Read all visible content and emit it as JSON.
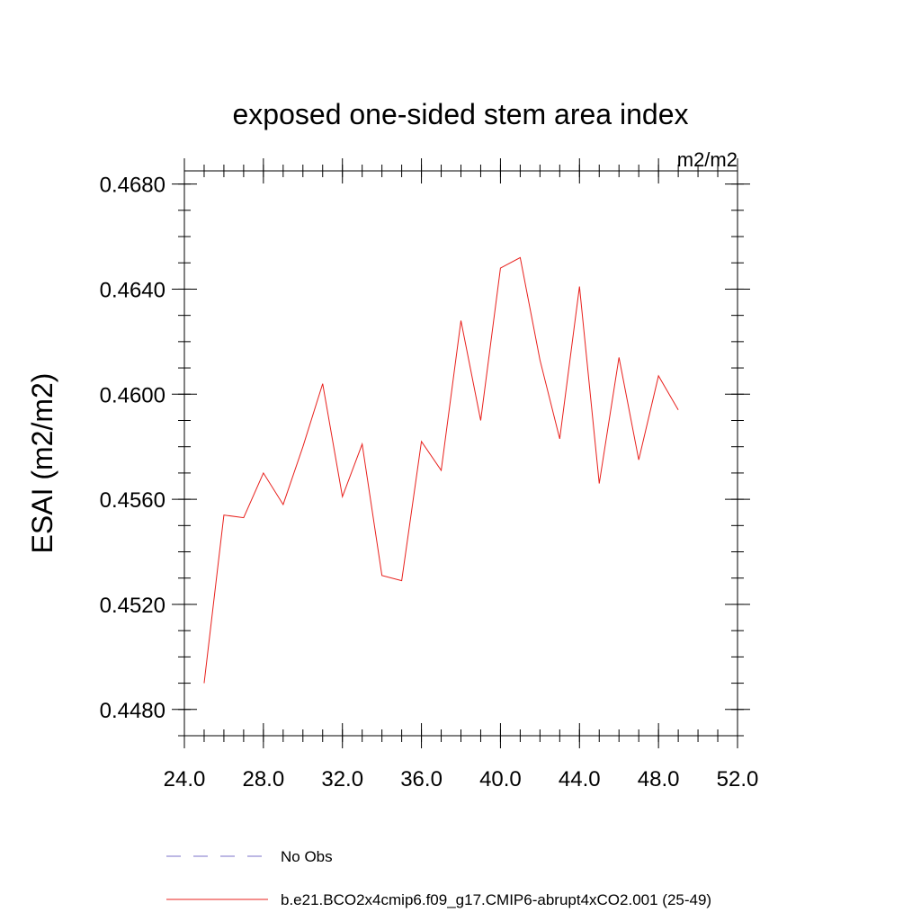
{
  "chart_data": {
    "type": "line",
    "title": "exposed one-sided stem area index",
    "units": "m2/m2",
    "xlabel": "",
    "ylabel": "ESAI  (m2/m2)",
    "xlim": [
      24.0,
      52.0
    ],
    "ylim": [
      0.447,
      0.4685
    ],
    "x_ticks": [
      24.0,
      28.0,
      32.0,
      36.0,
      40.0,
      44.0,
      48.0,
      52.0
    ],
    "x_tick_labels": [
      "24.0",
      "28.0",
      "32.0",
      "36.0",
      "40.0",
      "44.0",
      "48.0",
      "52.0"
    ],
    "x_minor_step": 1,
    "y_ticks": [
      0.448,
      0.452,
      0.456,
      0.46,
      0.464,
      0.468
    ],
    "y_tick_labels": [
      "0.4480",
      "0.4520",
      "0.4560",
      "0.4600",
      "0.4640",
      "0.4680"
    ],
    "y_minor_step": 0.001,
    "series": [
      {
        "name": "b.e21.BCO2x4cmip6.f09_g17.CMIP6-abrupt4xCO2.001 (25-49)",
        "color": "#e8201c",
        "dash": "solid",
        "x": [
          25,
          26,
          27,
          28,
          29,
          30,
          31,
          32,
          33,
          34,
          35,
          36,
          37,
          38,
          39,
          40,
          41,
          42,
          43,
          44,
          45,
          46,
          47,
          48,
          49
        ],
        "y": [
          0.449,
          0.4554,
          0.4553,
          0.457,
          0.4558,
          0.458,
          0.4604,
          0.4561,
          0.4581,
          0.4531,
          0.4529,
          0.4582,
          0.4571,
          0.4628,
          0.459,
          0.4648,
          0.4652,
          0.4613,
          0.4583,
          0.4641,
          0.4566,
          0.4614,
          0.4575,
          0.4607,
          0.4594
        ]
      }
    ],
    "legend": [
      {
        "label": "No Obs",
        "color": "#7b72c8",
        "dash": "dashed"
      },
      {
        "label": "b.e21.BCO2x4cmip6.f09_g17.CMIP6-abrupt4xCO2.001 (25-49)",
        "color": "#e8201c",
        "dash": "solid"
      }
    ],
    "legend_position": "bottom"
  }
}
